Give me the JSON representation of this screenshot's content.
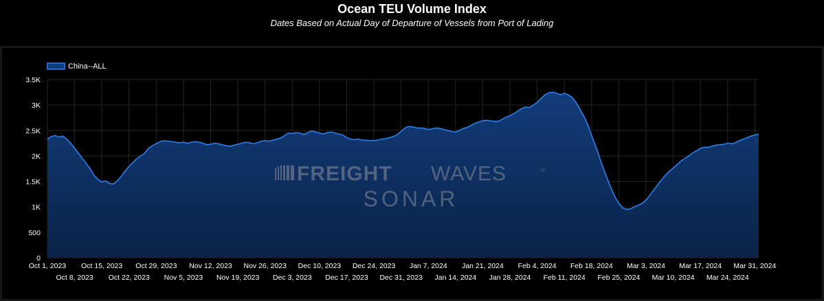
{
  "header": {
    "title": "Ocean TEU Volume Index",
    "subtitle": "Dates Based on Actual Day of Departure of Vessels from Port of Lading"
  },
  "watermark": {
    "line1_bold": "FREIGHT",
    "line1_light": "WAVES",
    "line2": "SONAR",
    "trademark": "®"
  },
  "colors": {
    "line": "#2f7ff0",
    "area_top": "#123d7a",
    "area_bottom": "#0a2248",
    "grid": "#262626",
    "background": "#000000",
    "watermark": "#8a8f98"
  },
  "chart_data": {
    "type": "area",
    "title": "Ocean TEU Volume Index",
    "subtitle": "Dates Based on Actual Day of Departure of Vessels from Port of Lading",
    "legend": {
      "position": "top-left",
      "entries": [
        "China--ALL"
      ]
    },
    "grid": true,
    "ylim": [
      0,
      3500
    ],
    "yticks": [
      {
        "value": 0,
        "label": "0"
      },
      {
        "value": 500,
        "label": "500"
      },
      {
        "value": 1000,
        "label": "1K"
      },
      {
        "value": 1500,
        "label": "1.5K"
      },
      {
        "value": 2000,
        "label": "2K"
      },
      {
        "value": 2500,
        "label": "2.5K"
      },
      {
        "value": 3000,
        "label": "3K"
      },
      {
        "value": 3500,
        "label": "3.5K"
      }
    ],
    "xlim": [
      "2023-10-01",
      "2024-04-01"
    ],
    "xticks": [
      {
        "date": "2023-10-01",
        "label": "Oct 1, 2023",
        "row": 1
      },
      {
        "date": "2023-10-08",
        "label": "Oct 8, 2023",
        "row": 2
      },
      {
        "date": "2023-10-15",
        "label": "Oct 15, 2023",
        "row": 1
      },
      {
        "date": "2023-10-22",
        "label": "Oct 22, 2023",
        "row": 2
      },
      {
        "date": "2023-10-29",
        "label": "Oct 29, 2023",
        "row": 1
      },
      {
        "date": "2023-11-05",
        "label": "Nov 5, 2023",
        "row": 2
      },
      {
        "date": "2023-11-12",
        "label": "Nov 12, 2023",
        "row": 1
      },
      {
        "date": "2023-11-19",
        "label": "Nov 19, 2023",
        "row": 2
      },
      {
        "date": "2023-11-26",
        "label": "Nov 26, 2023",
        "row": 1
      },
      {
        "date": "2023-12-03",
        "label": "Dec 3, 2023",
        "row": 2
      },
      {
        "date": "2023-12-10",
        "label": "Dec 10, 2023",
        "row": 1
      },
      {
        "date": "2023-12-17",
        "label": "Dec 17, 2023",
        "row": 2
      },
      {
        "date": "2023-12-24",
        "label": "Dec 24, 2023",
        "row": 1
      },
      {
        "date": "2023-12-31",
        "label": "Dec 31, 2023",
        "row": 2
      },
      {
        "date": "2024-01-07",
        "label": "Jan 7, 2024",
        "row": 1
      },
      {
        "date": "2024-01-14",
        "label": "Jan 14, 2024",
        "row": 2
      },
      {
        "date": "2024-01-21",
        "label": "Jan 21, 2024",
        "row": 1
      },
      {
        "date": "2024-01-28",
        "label": "Jan 28, 2024",
        "row": 2
      },
      {
        "date": "2024-02-04",
        "label": "Feb 4, 2024",
        "row": 1
      },
      {
        "date": "2024-02-11",
        "label": "Feb 11, 2024",
        "row": 2
      },
      {
        "date": "2024-02-18",
        "label": "Feb 18, 2024",
        "row": 1
      },
      {
        "date": "2024-02-25",
        "label": "Feb 25, 2024",
        "row": 2
      },
      {
        "date": "2024-03-03",
        "label": "Mar 3, 2024",
        "row": 1
      },
      {
        "date": "2024-03-10",
        "label": "Mar 10, 2024",
        "row": 2
      },
      {
        "date": "2024-03-17",
        "label": "Mar 17, 2024",
        "row": 1
      },
      {
        "date": "2024-03-24",
        "label": "Mar 24, 2024",
        "row": 2
      },
      {
        "date": "2024-03-31",
        "label": "Mar 31, 2024",
        "row": 1
      }
    ],
    "series": [
      {
        "name": "China--ALL",
        "points": [
          [
            "2023-10-01",
            2330
          ],
          [
            "2023-10-02",
            2380
          ],
          [
            "2023-10-03",
            2400
          ],
          [
            "2023-10-04",
            2370
          ],
          [
            "2023-10-05",
            2390
          ],
          [
            "2023-10-06",
            2330
          ],
          [
            "2023-10-07",
            2250
          ],
          [
            "2023-10-08",
            2150
          ],
          [
            "2023-10-09",
            2050
          ],
          [
            "2023-10-10",
            1950
          ],
          [
            "2023-10-11",
            1850
          ],
          [
            "2023-10-12",
            1750
          ],
          [
            "2023-10-13",
            1620
          ],
          [
            "2023-10-14",
            1540
          ],
          [
            "2023-10-15",
            1490
          ],
          [
            "2023-10-16",
            1510
          ],
          [
            "2023-10-17",
            1460
          ],
          [
            "2023-10-18",
            1450
          ],
          [
            "2023-10-19",
            1510
          ],
          [
            "2023-10-20",
            1600
          ],
          [
            "2023-10-21",
            1700
          ],
          [
            "2023-10-22",
            1800
          ],
          [
            "2023-10-23",
            1870
          ],
          [
            "2023-10-24",
            1950
          ],
          [
            "2023-10-25",
            2000
          ],
          [
            "2023-10-26",
            2050
          ],
          [
            "2023-10-27",
            2150
          ],
          [
            "2023-10-28",
            2200
          ],
          [
            "2023-10-29",
            2240
          ],
          [
            "2023-10-30",
            2280
          ],
          [
            "2023-10-31",
            2300
          ],
          [
            "2023-11-01",
            2290
          ],
          [
            "2023-11-02",
            2280
          ],
          [
            "2023-11-03",
            2270
          ],
          [
            "2023-11-04",
            2260
          ],
          [
            "2023-11-05",
            2270
          ],
          [
            "2023-11-06",
            2250
          ],
          [
            "2023-11-07",
            2270
          ],
          [
            "2023-11-08",
            2280
          ],
          [
            "2023-11-09",
            2270
          ],
          [
            "2023-11-10",
            2250
          ],
          [
            "2023-11-11",
            2220
          ],
          [
            "2023-11-12",
            2230
          ],
          [
            "2023-11-13",
            2250
          ],
          [
            "2023-11-14",
            2240
          ],
          [
            "2023-11-15",
            2220
          ],
          [
            "2023-11-16",
            2200
          ],
          [
            "2023-11-17",
            2190
          ],
          [
            "2023-11-18",
            2210
          ],
          [
            "2023-11-19",
            2230
          ],
          [
            "2023-11-20",
            2250
          ],
          [
            "2023-11-21",
            2270
          ],
          [
            "2023-11-22",
            2260
          ],
          [
            "2023-11-23",
            2240
          ],
          [
            "2023-11-24",
            2260
          ],
          [
            "2023-11-25",
            2290
          ],
          [
            "2023-11-26",
            2300
          ],
          [
            "2023-11-27",
            2290
          ],
          [
            "2023-11-28",
            2310
          ],
          [
            "2023-11-29",
            2330
          ],
          [
            "2023-11-30",
            2350
          ],
          [
            "2023-12-01",
            2400
          ],
          [
            "2023-12-02",
            2450
          ],
          [
            "2023-12-03",
            2440
          ],
          [
            "2023-12-04",
            2460
          ],
          [
            "2023-12-05",
            2450
          ],
          [
            "2023-12-06",
            2420
          ],
          [
            "2023-12-07",
            2460
          ],
          [
            "2023-12-08",
            2490
          ],
          [
            "2023-12-09",
            2470
          ],
          [
            "2023-12-10",
            2450
          ],
          [
            "2023-12-11",
            2430
          ],
          [
            "2023-12-12",
            2460
          ],
          [
            "2023-12-13",
            2470
          ],
          [
            "2023-12-14",
            2450
          ],
          [
            "2023-12-15",
            2430
          ],
          [
            "2023-12-16",
            2410
          ],
          [
            "2023-12-17",
            2360
          ],
          [
            "2023-12-18",
            2330
          ],
          [
            "2023-12-19",
            2320
          ],
          [
            "2023-12-20",
            2330
          ],
          [
            "2023-12-21",
            2310
          ],
          [
            "2023-12-22",
            2310
          ],
          [
            "2023-12-23",
            2300
          ],
          [
            "2023-12-24",
            2300
          ],
          [
            "2023-12-25",
            2310
          ],
          [
            "2023-12-26",
            2330
          ],
          [
            "2023-12-27",
            2340
          ],
          [
            "2023-12-28",
            2360
          ],
          [
            "2023-12-29",
            2380
          ],
          [
            "2023-12-30",
            2420
          ],
          [
            "2023-12-31",
            2480
          ],
          [
            "2024-01-01",
            2550
          ],
          [
            "2024-01-02",
            2580
          ],
          [
            "2024-01-03",
            2570
          ],
          [
            "2024-01-04",
            2550
          ],
          [
            "2024-01-05",
            2550
          ],
          [
            "2024-01-06",
            2540
          ],
          [
            "2024-01-07",
            2520
          ],
          [
            "2024-01-08",
            2530
          ],
          [
            "2024-01-09",
            2550
          ],
          [
            "2024-01-10",
            2540
          ],
          [
            "2024-01-11",
            2520
          ],
          [
            "2024-01-12",
            2500
          ],
          [
            "2024-01-13",
            2480
          ],
          [
            "2024-01-14",
            2470
          ],
          [
            "2024-01-15",
            2500
          ],
          [
            "2024-01-16",
            2540
          ],
          [
            "2024-01-17",
            2560
          ],
          [
            "2024-01-18",
            2600
          ],
          [
            "2024-01-19",
            2640
          ],
          [
            "2024-01-20",
            2670
          ],
          [
            "2024-01-21",
            2690
          ],
          [
            "2024-01-22",
            2700
          ],
          [
            "2024-01-23",
            2690
          ],
          [
            "2024-01-24",
            2680
          ],
          [
            "2024-01-25",
            2680
          ],
          [
            "2024-01-26",
            2720
          ],
          [
            "2024-01-27",
            2760
          ],
          [
            "2024-01-28",
            2790
          ],
          [
            "2024-01-29",
            2830
          ],
          [
            "2024-01-30",
            2880
          ],
          [
            "2024-01-31",
            2930
          ],
          [
            "2024-02-01",
            2960
          ],
          [
            "2024-02-02",
            2950
          ],
          [
            "2024-02-03",
            3000
          ],
          [
            "2024-02-04",
            3050
          ],
          [
            "2024-02-05",
            3130
          ],
          [
            "2024-02-06",
            3200
          ],
          [
            "2024-02-07",
            3240
          ],
          [
            "2024-02-08",
            3250
          ],
          [
            "2024-02-09",
            3230
          ],
          [
            "2024-02-10",
            3200
          ],
          [
            "2024-02-11",
            3230
          ],
          [
            "2024-02-12",
            3200
          ],
          [
            "2024-02-13",
            3150
          ],
          [
            "2024-02-14",
            3050
          ],
          [
            "2024-02-15",
            2920
          ],
          [
            "2024-02-16",
            2780
          ],
          [
            "2024-02-17",
            2620
          ],
          [
            "2024-02-18",
            2400
          ],
          [
            "2024-02-19",
            2200
          ],
          [
            "2024-02-20",
            1980
          ],
          [
            "2024-02-21",
            1760
          ],
          [
            "2024-02-22",
            1560
          ],
          [
            "2024-02-23",
            1370
          ],
          [
            "2024-02-24",
            1200
          ],
          [
            "2024-02-25",
            1070
          ],
          [
            "2024-02-26",
            980
          ],
          [
            "2024-02-27",
            950
          ],
          [
            "2024-02-28",
            960
          ],
          [
            "2024-02-29",
            1000
          ],
          [
            "2024-03-01",
            1030
          ],
          [
            "2024-03-02",
            1070
          ],
          [
            "2024-03-03",
            1130
          ],
          [
            "2024-03-04",
            1230
          ],
          [
            "2024-03-05",
            1330
          ],
          [
            "2024-03-06",
            1430
          ],
          [
            "2024-03-07",
            1530
          ],
          [
            "2024-03-08",
            1620
          ],
          [
            "2024-03-09",
            1700
          ],
          [
            "2024-03-10",
            1760
          ],
          [
            "2024-03-11",
            1830
          ],
          [
            "2024-03-12",
            1900
          ],
          [
            "2024-03-13",
            1950
          ],
          [
            "2024-03-14",
            2000
          ],
          [
            "2024-03-15",
            2060
          ],
          [
            "2024-03-16",
            2100
          ],
          [
            "2024-03-17",
            2150
          ],
          [
            "2024-03-18",
            2170
          ],
          [
            "2024-03-19",
            2170
          ],
          [
            "2024-03-20",
            2190
          ],
          [
            "2024-03-21",
            2210
          ],
          [
            "2024-03-22",
            2220
          ],
          [
            "2024-03-23",
            2230
          ],
          [
            "2024-03-24",
            2250
          ],
          [
            "2024-03-25",
            2240
          ],
          [
            "2024-03-26",
            2260
          ],
          [
            "2024-03-27",
            2300
          ],
          [
            "2024-03-28",
            2330
          ],
          [
            "2024-03-29",
            2360
          ],
          [
            "2024-03-30",
            2390
          ],
          [
            "2024-03-31",
            2410
          ],
          [
            "2024-04-01",
            2430
          ]
        ]
      }
    ]
  }
}
